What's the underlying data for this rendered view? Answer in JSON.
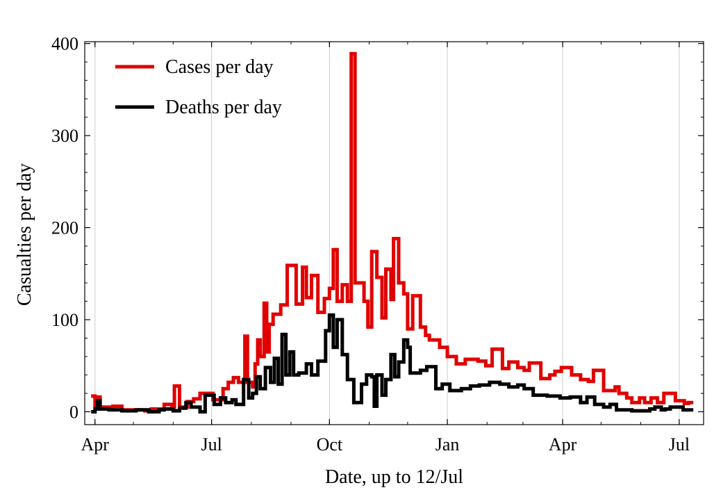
{
  "chart_data": {
    "type": "line",
    "step": true,
    "xlabel": "Date, up to 12/Jul",
    "ylabel": "Casualties per day",
    "x_unit": "date",
    "xlim": [
      "2020-03-24",
      "2021-07-20"
    ],
    "ylim": [
      -14,
      402
    ],
    "y_ticks": [
      0,
      100,
      200,
      300,
      400
    ],
    "x_ticks": [
      {
        "label": "Apr",
        "date": "2020-04-01"
      },
      {
        "label": "Jul",
        "date": "2020-07-01"
      },
      {
        "label": "Oct",
        "date": "2020-10-01"
      },
      {
        "label": "Jan",
        "date": "2021-01-01"
      },
      {
        "label": "Apr",
        "date": "2021-04-01"
      },
      {
        "label": "Jul",
        "date": "2021-07-01"
      }
    ],
    "grid": "vertical",
    "legend": "top-left",
    "series": [
      {
        "name": "Cases per day",
        "color": "#e00000",
        "points": [
          [
            "2020-03-29",
            17
          ],
          [
            "2020-04-01",
            6
          ],
          [
            "2020-04-03",
            16
          ],
          [
            "2020-04-05",
            5
          ],
          [
            "2020-04-15",
            6
          ],
          [
            "2020-04-22",
            2
          ],
          [
            "2020-05-10",
            1
          ],
          [
            "2020-05-15",
            3
          ],
          [
            "2020-05-25",
            8
          ],
          [
            "2020-05-31",
            5
          ],
          [
            "2020-06-02",
            28
          ],
          [
            "2020-06-06",
            5
          ],
          [
            "2020-06-12",
            11
          ],
          [
            "2020-06-17",
            14
          ],
          [
            "2020-06-22",
            20
          ],
          [
            "2020-07-02",
            13
          ],
          [
            "2020-07-10",
            25
          ],
          [
            "2020-07-14",
            32
          ],
          [
            "2020-07-18",
            37
          ],
          [
            "2020-07-22",
            32
          ],
          [
            "2020-07-27",
            82
          ],
          [
            "2020-07-29",
            32
          ],
          [
            "2020-08-02",
            27
          ],
          [
            "2020-08-04",
            52
          ],
          [
            "2020-08-06",
            78
          ],
          [
            "2020-08-08",
            60
          ],
          [
            "2020-08-11",
            118
          ],
          [
            "2020-08-13",
            65
          ],
          [
            "2020-08-15",
            95
          ],
          [
            "2020-08-18",
            106
          ],
          [
            "2020-08-24",
            116
          ],
          [
            "2020-08-29",
            159
          ],
          [
            "2020-09-05",
            117
          ],
          [
            "2020-09-10",
            157
          ],
          [
            "2020-09-13",
            124
          ],
          [
            "2020-09-17",
            148
          ],
          [
            "2020-09-22",
            108
          ],
          [
            "2020-09-27",
            123
          ],
          [
            "2020-10-01",
            134
          ],
          [
            "2020-10-04",
            176
          ],
          [
            "2020-10-07",
            120
          ],
          [
            "2020-10-11",
            138
          ],
          [
            "2020-10-15",
            120
          ],
          [
            "2020-10-18",
            389
          ],
          [
            "2020-10-21",
            140
          ],
          [
            "2020-10-28",
            120
          ],
          [
            "2020-10-31",
            92
          ],
          [
            "2020-11-03",
            174
          ],
          [
            "2020-11-07",
            146
          ],
          [
            "2020-11-11",
            102
          ],
          [
            "2020-11-14",
            155
          ],
          [
            "2020-11-18",
            122
          ],
          [
            "2020-11-20",
            188
          ],
          [
            "2020-11-24",
            140
          ],
          [
            "2020-11-28",
            128
          ],
          [
            "2020-12-01",
            90
          ],
          [
            "2020-12-05",
            126
          ],
          [
            "2020-12-11",
            92
          ],
          [
            "2020-12-15",
            83
          ],
          [
            "2020-12-18",
            78
          ],
          [
            "2020-12-26",
            70
          ],
          [
            "2021-01-01",
            60
          ],
          [
            "2021-01-08",
            52
          ],
          [
            "2021-01-15",
            57
          ],
          [
            "2021-01-25",
            55
          ],
          [
            "2021-01-31",
            50
          ],
          [
            "2021-02-05",
            68
          ],
          [
            "2021-02-13",
            47
          ],
          [
            "2021-02-18",
            54
          ],
          [
            "2021-02-25",
            48
          ],
          [
            "2021-03-02",
            45
          ],
          [
            "2021-03-06",
            53
          ],
          [
            "2021-03-15",
            36
          ],
          [
            "2021-03-22",
            40
          ],
          [
            "2021-03-26",
            44
          ],
          [
            "2021-03-31",
            48
          ],
          [
            "2021-04-08",
            40
          ],
          [
            "2021-04-15",
            35
          ],
          [
            "2021-04-21",
            33
          ],
          [
            "2021-04-25",
            45
          ],
          [
            "2021-05-03",
            23
          ],
          [
            "2021-05-12",
            27
          ],
          [
            "2021-05-15",
            20
          ],
          [
            "2021-05-21",
            15
          ],
          [
            "2021-05-25",
            10
          ],
          [
            "2021-05-31",
            15
          ],
          [
            "2021-06-04",
            10
          ],
          [
            "2021-06-09",
            15
          ],
          [
            "2021-06-14",
            10
          ],
          [
            "2021-06-19",
            20
          ],
          [
            "2021-06-28",
            12
          ],
          [
            "2021-07-05",
            9
          ],
          [
            "2021-07-08",
            10
          ],
          [
            "2021-07-12",
            10
          ]
        ]
      },
      {
        "name": "Deaths per day",
        "color": "#000000",
        "points": [
          [
            "2020-03-29",
            0
          ],
          [
            "2020-04-01",
            3
          ],
          [
            "2020-04-03",
            12
          ],
          [
            "2020-04-05",
            3
          ],
          [
            "2020-04-12",
            2
          ],
          [
            "2020-04-22",
            1
          ],
          [
            "2020-05-03",
            2
          ],
          [
            "2020-05-13",
            0
          ],
          [
            "2020-05-21",
            2
          ],
          [
            "2020-05-25",
            3
          ],
          [
            "2020-06-01",
            1
          ],
          [
            "2020-06-06",
            4
          ],
          [
            "2020-06-11",
            10
          ],
          [
            "2020-06-15",
            5
          ],
          [
            "2020-06-22",
            0
          ],
          [
            "2020-06-26",
            18
          ],
          [
            "2020-07-03",
            8
          ],
          [
            "2020-07-08",
            15
          ],
          [
            "2020-07-12",
            10
          ],
          [
            "2020-07-17",
            13
          ],
          [
            "2020-07-20",
            8
          ],
          [
            "2020-07-26",
            35
          ],
          [
            "2020-07-30",
            15
          ],
          [
            "2020-08-02",
            20
          ],
          [
            "2020-08-05",
            38
          ],
          [
            "2020-08-08",
            25
          ],
          [
            "2020-08-12",
            48
          ],
          [
            "2020-08-16",
            32
          ],
          [
            "2020-08-19",
            58
          ],
          [
            "2020-08-22",
            30
          ],
          [
            "2020-08-25",
            84
          ],
          [
            "2020-08-28",
            40
          ],
          [
            "2020-08-31",
            65
          ],
          [
            "2020-09-03",
            40
          ],
          [
            "2020-09-07",
            42
          ],
          [
            "2020-09-13",
            52
          ],
          [
            "2020-09-17",
            40
          ],
          [
            "2020-09-22",
            55
          ],
          [
            "2020-09-28",
            88
          ],
          [
            "2020-10-01",
            105
          ],
          [
            "2020-10-04",
            70
          ],
          [
            "2020-10-07",
            100
          ],
          [
            "2020-10-11",
            62
          ],
          [
            "2020-10-15",
            35
          ],
          [
            "2020-10-20",
            10
          ],
          [
            "2020-10-26",
            30
          ],
          [
            "2020-10-30",
            40
          ],
          [
            "2020-11-03",
            38
          ],
          [
            "2020-11-05",
            6
          ],
          [
            "2020-11-07",
            40
          ],
          [
            "2020-11-11",
            18
          ],
          [
            "2020-11-14",
            35
          ],
          [
            "2020-11-18",
            62
          ],
          [
            "2020-11-21",
            38
          ],
          [
            "2020-11-24",
            54
          ],
          [
            "2020-11-28",
            78
          ],
          [
            "2020-12-01",
            70
          ],
          [
            "2020-12-03",
            42
          ],
          [
            "2020-12-11",
            45
          ],
          [
            "2020-12-16",
            49
          ],
          [
            "2020-12-23",
            25
          ],
          [
            "2020-12-28",
            30
          ],
          [
            "2021-01-03",
            23
          ],
          [
            "2021-01-12",
            25
          ],
          [
            "2021-01-19",
            28
          ],
          [
            "2021-01-26",
            29
          ],
          [
            "2021-02-03",
            32
          ],
          [
            "2021-02-11",
            30
          ],
          [
            "2021-02-18",
            27
          ],
          [
            "2021-02-25",
            29
          ],
          [
            "2021-03-02",
            25
          ],
          [
            "2021-03-09",
            18
          ],
          [
            "2021-03-20",
            17
          ],
          [
            "2021-03-30",
            15
          ],
          [
            "2021-04-07",
            16
          ],
          [
            "2021-04-15",
            10
          ],
          [
            "2021-04-20",
            16
          ],
          [
            "2021-04-26",
            8
          ],
          [
            "2021-05-03",
            5
          ],
          [
            "2021-05-08",
            8
          ],
          [
            "2021-05-13",
            2
          ],
          [
            "2021-05-25",
            1
          ],
          [
            "2021-06-08",
            3
          ],
          [
            "2021-06-12",
            5
          ],
          [
            "2021-06-17",
            2
          ],
          [
            "2021-06-20",
            3
          ],
          [
            "2021-06-24",
            5
          ],
          [
            "2021-07-04",
            2
          ],
          [
            "2021-07-12",
            2
          ]
        ]
      }
    ]
  }
}
